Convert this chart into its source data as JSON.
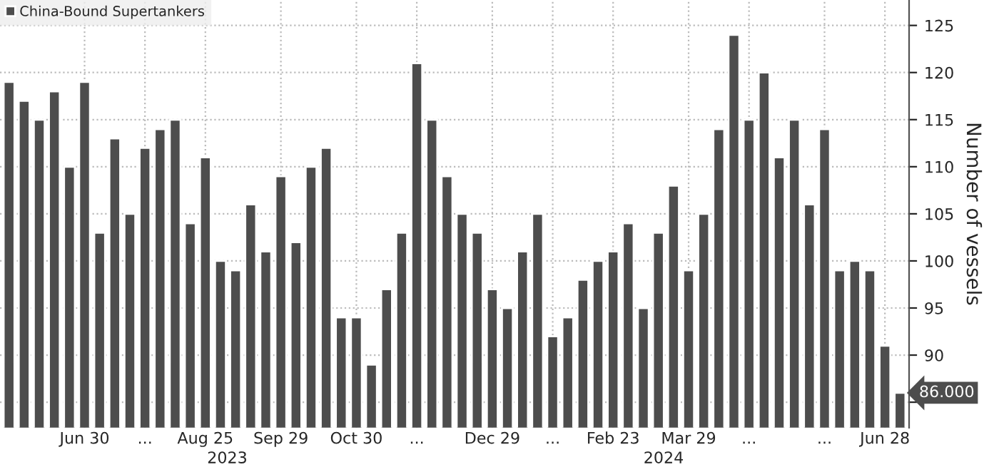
{
  "chart_data": {
    "type": "bar",
    "ylabel": "Number of vessels",
    "categories": [
      null,
      null,
      null,
      null,
      null,
      "Jun 30",
      null,
      null,
      null,
      "...",
      null,
      null,
      null,
      "Aug 25",
      null,
      null,
      null,
      null,
      "Sep 29",
      null,
      null,
      null,
      null,
      "Oct 30",
      null,
      null,
      null,
      "...",
      null,
      null,
      null,
      null,
      "Dec 29",
      null,
      null,
      null,
      "...",
      null,
      null,
      null,
      "Feb 23",
      null,
      null,
      null,
      null,
      "Mar 29",
      null,
      null,
      null,
      "...",
      null,
      null,
      null,
      null,
      "...",
      null,
      null,
      null,
      "Jun 28",
      null
    ],
    "series": [
      {
        "name": "China-Bound Supertankers",
        "color": "#4d4d4d",
        "values": [
          119,
          117,
          115,
          118,
          110,
          119,
          103,
          113,
          105,
          112,
          114,
          115,
          104,
          111,
          100,
          99,
          106,
          101,
          109,
          102,
          110,
          112,
          94,
          94,
          89,
          97,
          103,
          121,
          115,
          109,
          105,
          103,
          97,
          95,
          101,
          105,
          92,
          94,
          98,
          100,
          101,
          104,
          95,
          103,
          108,
          99,
          105,
          114,
          124,
          115,
          120,
          111,
          115,
          106,
          114,
          99,
          100,
          99,
          91,
          86
        ]
      }
    ],
    "ylim": [
      82.3,
      127.7
    ],
    "yticks": [
      {
        "value": 85,
        "label": null
      },
      90,
      95,
      100,
      105,
      110,
      115,
      120,
      125
    ],
    "annotations": [
      "2023",
      "2024",
      "86.000"
    ],
    "grid": true,
    "legend": "top left"
  }
}
